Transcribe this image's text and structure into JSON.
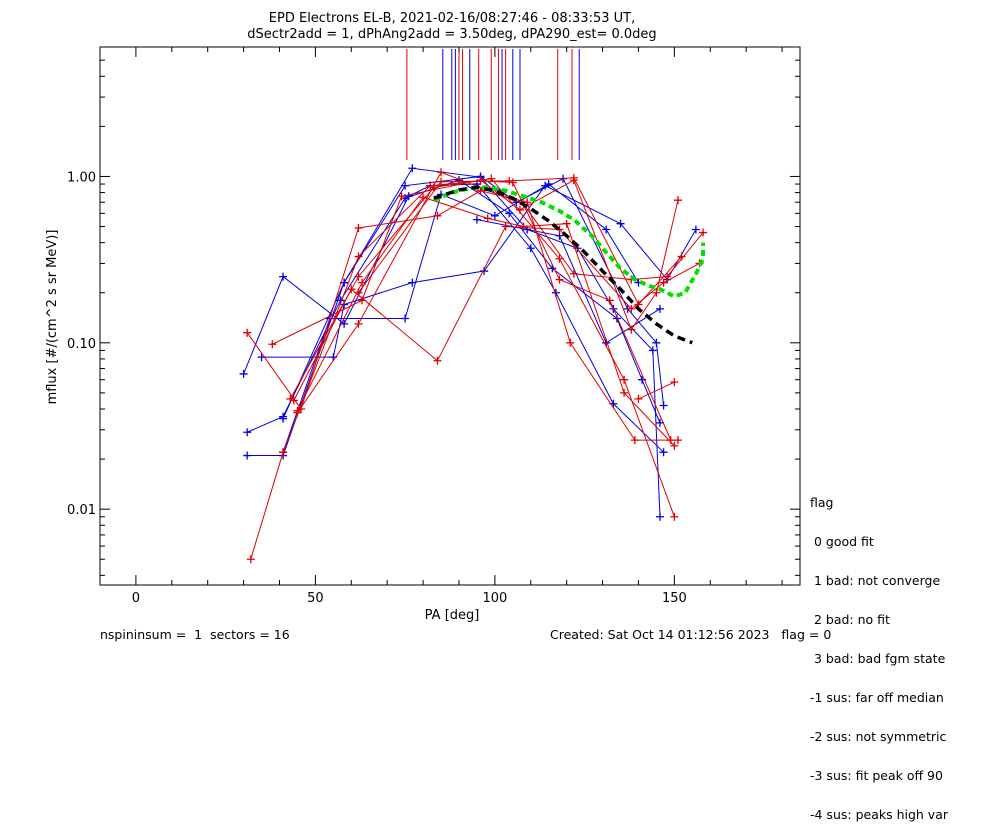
{
  "chart_data": {
    "type": "scatter",
    "title_line1": "EPD Electrons EL-B, 2021-02-16/08:27:46 - 08:33:53 UT,",
    "title_line2": "dSectr2add = 1, dPhAng2add = 3.50deg, dPA290_est=    0.0deg",
    "xlabel": "PA [deg]",
    "ylabel": "mflux [#/(cm^2 s sr MeV)]",
    "xlim": [
      -10,
      185
    ],
    "ylim": [
      0.0035,
      6.0
    ],
    "yscale": "log",
    "x_ticks": [
      0,
      50,
      100,
      150
    ],
    "x_tick_labels": [
      "0",
      "50",
      "100",
      "150"
    ],
    "y_ticks": [
      0.01,
      0.1,
      1.0
    ],
    "y_tick_labels": [
      "0.01",
      "0.10",
      "1.00"
    ],
    "colors": {
      "red": "#e00000",
      "blue": "#0000e0",
      "fit_black": "#000000",
      "fit_green": "#00e000"
    },
    "series": [
      {
        "color": "blue",
        "points": [
          [
            30,
            0.065
          ],
          [
            41,
            0.25
          ],
          [
            58,
            0.13
          ],
          [
            76,
            0.76
          ],
          [
            82,
            0.88
          ],
          [
            95,
            0.9
          ],
          [
            110,
            0.37
          ],
          [
            117,
            0.2
          ],
          [
            133,
            0.043
          ],
          [
            147,
            0.022
          ]
        ]
      },
      {
        "color": "blue",
        "points": [
          [
            31,
            0.029
          ],
          [
            41,
            0.036
          ],
          [
            57,
            0.18
          ],
          [
            75,
            0.74
          ],
          [
            90,
            0.95
          ],
          [
            104,
            0.6
          ],
          [
            116,
            0.28
          ],
          [
            134,
            0.14
          ],
          [
            141,
            0.06
          ],
          [
            146,
            0.033
          ]
        ]
      },
      {
        "color": "blue",
        "points": [
          [
            31,
            0.021
          ],
          [
            41,
            0.021
          ],
          [
            58,
            0.23
          ],
          [
            77,
            1.12
          ],
          [
            96,
            0.99
          ],
          [
            109,
            0.48
          ],
          [
            123,
            0.37
          ],
          [
            133,
            0.16
          ],
          [
            144,
            0.09
          ],
          [
            146,
            0.009
          ]
        ]
      },
      {
        "color": "blue",
        "points": [
          [
            35,
            0.082
          ],
          [
            55,
            0.082
          ],
          [
            58,
            0.17
          ],
          [
            77,
            0.23
          ],
          [
            97,
            0.27
          ],
          [
            114,
            0.88
          ],
          [
            135,
            0.52
          ],
          [
            148,
            0.24
          ],
          [
            156,
            0.48
          ]
        ]
      },
      {
        "color": "blue",
        "points": [
          [
            41,
            0.035
          ],
          [
            58,
            0.23
          ],
          [
            75,
            0.88
          ],
          [
            96,
            1.0
          ],
          [
            106,
            0.7
          ],
          [
            119,
            0.97
          ],
          [
            137,
            0.16
          ],
          [
            145,
            0.1
          ],
          [
            147,
            0.042
          ]
        ]
      },
      {
        "color": "blue",
        "points": [
          [
            41,
            0.022
          ],
          [
            54,
            0.14
          ],
          [
            75,
            0.14
          ],
          [
            85,
            0.78
          ],
          [
            100,
            0.58
          ],
          [
            115,
            0.9
          ],
          [
            131,
            0.48
          ],
          [
            140,
            0.23
          ]
        ]
      },
      {
        "color": "blue",
        "points": [
          [
            95,
            0.55
          ],
          [
            118,
            0.44
          ],
          [
            131,
            0.1
          ],
          [
            146,
            0.16
          ]
        ]
      },
      {
        "color": "red",
        "points": [
          [
            31,
            0.115
          ],
          [
            46,
            0.04
          ],
          [
            62,
            0.49
          ],
          [
            84,
            0.58
          ],
          [
            96,
            0.82
          ],
          [
            109,
            0.7
          ],
          [
            121,
            0.1
          ],
          [
            139,
            0.026
          ],
          [
            151,
            0.026
          ]
        ]
      },
      {
        "color": "red",
        "points": [
          [
            32,
            0.005
          ],
          [
            41,
            0.022
          ],
          [
            62,
            0.33
          ],
          [
            82,
            0.88
          ],
          [
            96,
            0.94
          ],
          [
            105,
            0.92
          ],
          [
            118,
            0.24
          ],
          [
            132,
            0.18
          ],
          [
            149,
            0.026
          ]
        ]
      },
      {
        "color": "red",
        "points": [
          [
            38,
            0.098
          ],
          [
            63,
            0.18
          ],
          [
            74,
            0.76
          ],
          [
            96,
            0.95
          ],
          [
            107,
            0.63
          ],
          [
            122,
            0.95
          ],
          [
            138,
            0.12
          ],
          [
            145,
            0.2
          ],
          [
            151,
            0.72
          ]
        ]
      },
      {
        "color": "red",
        "points": [
          [
            44,
            0.045
          ],
          [
            60,
            0.21
          ],
          [
            84,
            0.078
          ],
          [
            103,
            0.5
          ],
          [
            118,
            0.48
          ],
          [
            138,
            0.16
          ],
          [
            147,
            0.23
          ],
          [
            157,
            0.3
          ]
        ]
      },
      {
        "color": "red",
        "points": [
          [
            45,
            0.039
          ],
          [
            63,
            0.23
          ],
          [
            80,
            0.75
          ],
          [
            98,
            0.56
          ],
          [
            108,
            0.5
          ],
          [
            120,
            0.52
          ],
          [
            136,
            0.05
          ],
          [
            150,
            0.024
          ]
        ]
      },
      {
        "color": "red",
        "points": [
          [
            45,
            0.038
          ],
          [
            62,
            0.13
          ],
          [
            85,
            1.06
          ],
          [
            108,
            0.68
          ],
          [
            122,
            0.26
          ],
          [
            138,
            0.24
          ],
          [
            148,
            0.25
          ],
          [
            158,
            0.46
          ]
        ]
      },
      {
        "color": "red",
        "points": [
          [
            43,
            0.046
          ],
          [
            62,
            0.25
          ],
          [
            83,
            0.86
          ],
          [
            99,
            0.97
          ],
          [
            118,
            0.32
          ],
          [
            136,
            0.06
          ],
          [
            150,
            0.009
          ]
        ]
      },
      {
        "color": "red",
        "points": [
          [
            62,
            0.2
          ],
          [
            85,
            0.93
          ],
          [
            104,
            0.94
          ],
          [
            122,
            0.98
          ],
          [
            140,
            0.17
          ],
          [
            152,
            0.33
          ]
        ]
      },
      {
        "color": "red",
        "points": [
          [
            140,
            0.046
          ],
          [
            150,
            0.058
          ]
        ]
      }
    ],
    "fit_black": [
      [
        83,
        0.74
      ],
      [
        90,
        0.83
      ],
      [
        95,
        0.86
      ],
      [
        100,
        0.82
      ],
      [
        105,
        0.74
      ],
      [
        110,
        0.64
      ],
      [
        115,
        0.54
      ],
      [
        120,
        0.44
      ],
      [
        125,
        0.35
      ],
      [
        130,
        0.27
      ],
      [
        135,
        0.21
      ],
      [
        140,
        0.16
      ],
      [
        145,
        0.13
      ],
      [
        150,
        0.11
      ],
      [
        155,
        0.1
      ]
    ],
    "fit_green": [
      [
        83,
        0.72
      ],
      [
        88,
        0.8
      ],
      [
        93,
        0.85
      ],
      [
        98,
        0.86
      ],
      [
        103,
        0.82
      ],
      [
        108,
        0.76
      ],
      [
        113,
        0.7
      ],
      [
        118,
        0.62
      ],
      [
        122,
        0.55
      ],
      [
        127,
        0.44
      ],
      [
        131,
        0.35
      ],
      [
        135,
        0.28
      ],
      [
        139,
        0.24
      ],
      [
        143,
        0.22
      ],
      [
        146,
        0.21
      ],
      [
        150,
        0.19
      ],
      [
        153,
        0.2
      ],
      [
        156,
        0.26
      ],
      [
        158,
        0.32
      ],
      [
        158,
        0.4
      ]
    ],
    "red_sector_lines": [
      75.5,
      90,
      91,
      95.5,
      99,
      101,
      103,
      117.5,
      121.5
    ],
    "blue_sector_lines": [
      85.5,
      88,
      89,
      93,
      102,
      105,
      107,
      123.5
    ]
  },
  "legend": {
    "lines": [
      "flag",
      " 0 good fit",
      " 1 bad: not converge",
      " 2 bad: no fit",
      " 3 bad: bad fgm state",
      "-1 sus: far off median",
      "-2 sus: not symmetric",
      "-3 sus: fit peak off 90",
      "-4 sus: peaks high var"
    ]
  },
  "footer": {
    "left": "nspininsum =  1  sectors = 16",
    "right": "Created: Sat Oct 14 01:12:56 2023   flag = 0"
  }
}
